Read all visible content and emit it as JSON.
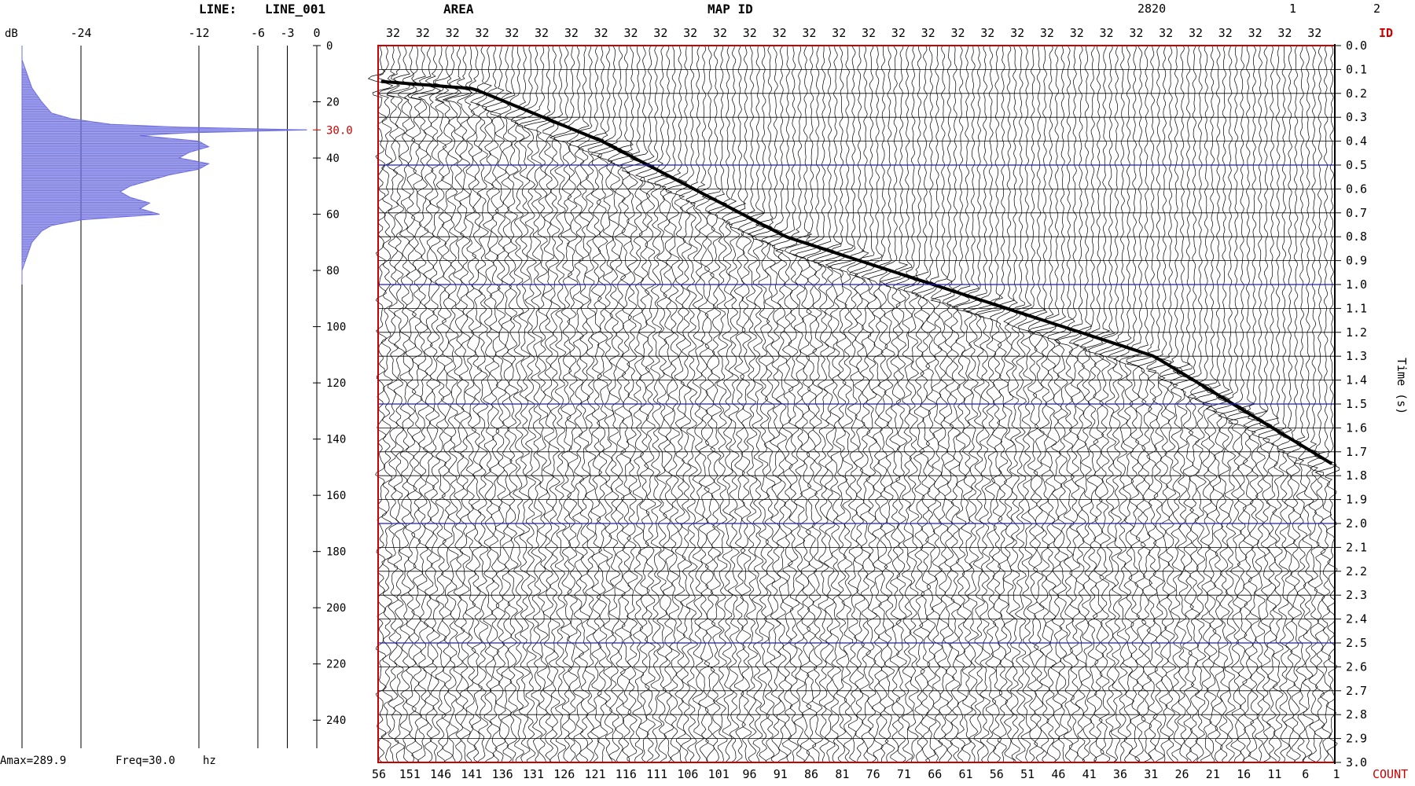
{
  "header": {
    "line_label": "LINE:",
    "line_value": "LINE_001",
    "area_label": "AREA",
    "map_label": "MAP ID",
    "right_value_1": "2820",
    "right_value_2": "1",
    "right_value_3": "2"
  },
  "footer": {
    "amax": "Amax=289.9",
    "freq": "Freq=30.0",
    "freq_unit": "hz"
  },
  "chart_data": [
    {
      "type": "area",
      "orientation": "horizontal",
      "xlabel": "dB",
      "x_ticks": [
        "-24",
        "-12",
        "-6",
        "-3",
        "0"
      ],
      "x_tick_values": [
        -24,
        -12,
        -6,
        -3,
        0
      ],
      "y_ticks": [
        0,
        20,
        40,
        60,
        80,
        100,
        120,
        140,
        160,
        180,
        200,
        220,
        240
      ],
      "y_range": [
        0,
        250
      ],
      "marked_frequency": "30.0",
      "marked_frequency_value": 30,
      "line_color": "#6f6fe0",
      "marker_color": "#cc0000",
      "spectrum": {
        "freq": [
          0,
          5,
          10,
          15,
          20,
          24,
          26,
          28,
          29,
          30,
          31,
          32,
          34,
          36,
          38,
          40,
          42,
          44,
          46,
          48,
          50,
          52,
          54,
          56,
          58,
          60,
          61,
          62,
          64,
          66,
          70,
          75,
          80,
          85
        ],
        "db": [
          -30,
          -30,
          -29.5,
          -29,
          -28,
          -27,
          -25,
          -21,
          -14,
          -1,
          -13,
          -18,
          -12,
          -11,
          -13,
          -14,
          -11,
          -12,
          -15,
          -17,
          -19,
          -20,
          -19,
          -17,
          -18,
          -16,
          -20,
          -24,
          -27,
          -28,
          -29,
          -29.5,
          -30,
          -30
        ]
      }
    },
    {
      "type": "heatmap",
      "subtype": "seismic-wiggle",
      "top_trace_labels": [
        "32",
        "32",
        "32",
        "32",
        "32",
        "32",
        "32",
        "32",
        "32",
        "32",
        "32",
        "32",
        "32",
        "32",
        "32",
        "32",
        "32",
        "32",
        "32",
        "32",
        "32",
        "32",
        "32",
        "32",
        "32",
        "32",
        "32",
        "32",
        "32",
        "32",
        "32",
        "32"
      ],
      "id_label": "ID",
      "count_label": "COUNT",
      "bottom_trace_labels": [
        "56",
        "151",
        "146",
        "141",
        "136",
        "131",
        "126",
        "121",
        "116",
        "111",
        "106",
        "101",
        "96",
        "91",
        "86",
        "81",
        "76",
        "71",
        "66",
        "61",
        "56",
        "51",
        "46",
        "41",
        "36",
        "31",
        "26",
        "21",
        "16",
        "11",
        "6",
        "1"
      ],
      "ylabel": "Time (s)",
      "y_ticks": [
        "0.0",
        "0.1",
        "0.2",
        "0.3",
        "0.4",
        "0.5",
        "0.6",
        "0.7",
        "0.8",
        "0.9",
        "1.0",
        "1.1",
        "1.2",
        "1.3",
        "1.4",
        "1.5",
        "1.6",
        "1.7",
        "1.8",
        "1.9",
        "2.0",
        "2.1",
        "2.2",
        "2.3",
        "2.4",
        "2.5",
        "2.6",
        "2.7",
        "2.8",
        "2.9",
        "3.0"
      ],
      "y_range": [
        0,
        3.0
      ],
      "blue_lines_s": [
        0.5,
        1.0,
        1.5,
        2.0,
        2.5
      ],
      "first_break": {
        "trace": [
          156,
          141,
          120,
          90,
          60,
          30,
          1
        ],
        "time_s": [
          0.15,
          0.18,
          0.4,
          0.8,
          1.05,
          1.3,
          1.75
        ]
      },
      "frame_color": "#cc0000",
      "accent_color": "#cc0000",
      "gridline_color": "#1a1acc"
    }
  ]
}
